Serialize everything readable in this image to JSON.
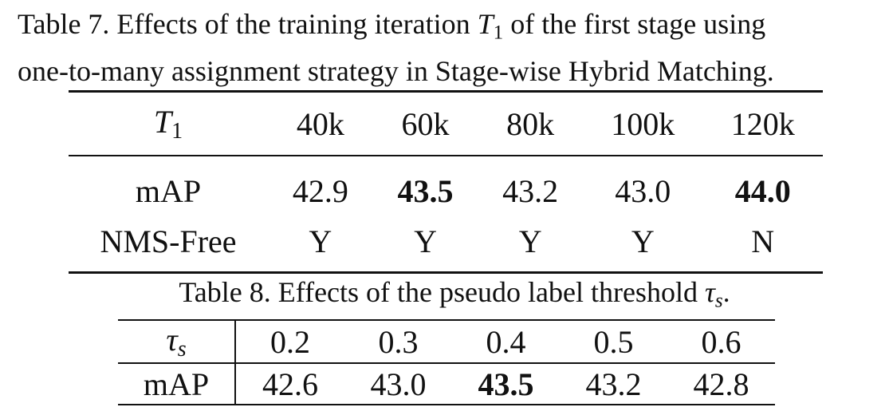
{
  "table7": {
    "caption_prefix": "Table 7. Effects of the training iteration ",
    "caption_var": "T",
    "caption_sub": "1",
    "caption_suffix_line1": " of the first stage using",
    "caption_line2": "one-to-many assignment strategy in Stage-wise Hybrid Matching.",
    "header_var": "T",
    "header_sub": "1",
    "columns": [
      "40k",
      "60k",
      "80k",
      "100k",
      "120k"
    ],
    "rows": [
      {
        "label": "mAP",
        "values": [
          "42.9",
          "43.5",
          "43.2",
          "43.0",
          "44.0"
        ],
        "bold_indices": [
          1,
          4
        ]
      },
      {
        "label": "NMS-Free",
        "values": [
          "Y",
          "Y",
          "Y",
          "Y",
          "N"
        ],
        "bold_indices": []
      }
    ]
  },
  "table8": {
    "caption_prefix": "Table 8. Effects of the pseudo label threshold ",
    "caption_var": "τ",
    "caption_sub": "s",
    "caption_suffix": ".",
    "header_var": "τ",
    "header_sub": "s",
    "columns": [
      "0.2",
      "0.3",
      "0.4",
      "0.5",
      "0.6"
    ],
    "row_label": "mAP",
    "values": [
      "42.6",
      "43.0",
      "43.5",
      "43.2",
      "42.8"
    ],
    "bold_indices": [
      2
    ]
  }
}
